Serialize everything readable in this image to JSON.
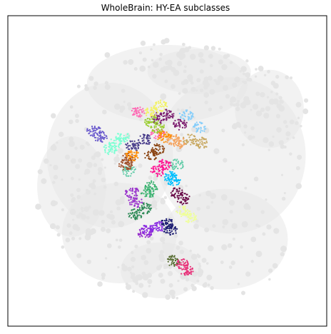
{
  "chart_data": {
    "type": "scatter",
    "title": "WholeBrain: HY-EA subclasses",
    "xlabel": "",
    "ylabel": "",
    "axis_ticks": false,
    "grid": false,
    "legend": "none",
    "background_points_color": "#e8e8e8",
    "series": [
      {
        "color": "#7b1c6e",
        "x": [
          0.47,
          0.5,
          0.54
        ],
        "y": [
          0.67,
          0.68,
          0.65
        ]
      },
      {
        "color": "#8b4513",
        "x": [
          0.47,
          0.45
        ],
        "y": [
          0.57,
          0.55
        ]
      },
      {
        "color": "#f2f266",
        "x": [
          0.45,
          0.48
        ],
        "y": [
          0.69,
          0.71
        ]
      },
      {
        "color": "#6a5acd",
        "x": [
          0.27,
          0.29
        ],
        "y": [
          0.63,
          0.61
        ]
      },
      {
        "color": "#7fffd4",
        "x": [
          0.32,
          0.34,
          0.36
        ],
        "y": [
          0.57,
          0.59,
          0.61
        ]
      },
      {
        "color": "#87cefa",
        "x": [
          0.56,
          0.6
        ],
        "y": [
          0.68,
          0.64
        ]
      },
      {
        "color": "#c8a860",
        "x": [
          0.57,
          0.61
        ],
        "y": [
          0.6,
          0.59
        ]
      },
      {
        "color": "#f4a460",
        "x": [
          0.52,
          0.54
        ],
        "y": [
          0.6,
          0.59
        ]
      },
      {
        "color": "#483d8b",
        "x": [
          0.39,
          0.43
        ],
        "y": [
          0.58,
          0.6
        ]
      },
      {
        "color": "#66cdaa",
        "x": [
          0.38,
          0.53
        ],
        "y": [
          0.5,
          0.52
        ]
      },
      {
        "color": "#2e8b57",
        "x": [
          0.4,
          0.43
        ],
        "y": [
          0.36,
          0.38
        ]
      },
      {
        "color": "#3cb371",
        "x": [
          0.44,
          0.45
        ],
        "y": [
          0.43,
          0.45
        ]
      },
      {
        "color": "#ff1493",
        "x": [
          0.47,
          0.49
        ],
        "y": [
          0.5,
          0.52
        ]
      },
      {
        "color": "#00bfff",
        "x": [
          0.51,
          0.52
        ],
        "y": [
          0.48,
          0.47
        ]
      },
      {
        "color": "#6b0f4a",
        "x": [
          0.53,
          0.55
        ],
        "y": [
          0.43,
          0.41
        ]
      },
      {
        "color": "#efff9a",
        "x": [
          0.55,
          0.57
        ],
        "y": [
          0.37,
          0.35
        ]
      },
      {
        "color": "#191970",
        "x": [
          0.5,
          0.51
        ],
        "y": [
          0.33,
          0.31
        ]
      },
      {
        "color": "#556b2f",
        "x": [
          0.52
        ],
        "y": [
          0.21
        ]
      },
      {
        "color": "#e8337a",
        "x": [
          0.55,
          0.56
        ],
        "y": [
          0.2,
          0.18
        ]
      },
      {
        "color": "#9932cc",
        "x": [
          0.39,
          0.4,
          0.43
        ],
        "y": [
          0.43,
          0.4,
          0.3
        ]
      },
      {
        "color": "#ff69b4",
        "x": [
          0.41,
          0.47
        ],
        "y": [
          0.69,
          0.62
        ]
      },
      {
        "color": "#9acd32",
        "x": [
          0.47,
          0.45
        ],
        "y": [
          0.64,
          0.66
        ]
      },
      {
        "color": "#a0522d",
        "x": [
          0.37,
          0.38
        ],
        "y": [
          0.52,
          0.54
        ]
      },
      {
        "color": "#ff8c00",
        "x": [
          0.39,
          0.49
        ],
        "y": [
          0.55,
          0.61
        ]
      },
      {
        "color": "#8a2be2",
        "x": [
          0.44,
          0.47
        ],
        "y": [
          0.31,
          0.32
        ]
      }
    ]
  }
}
